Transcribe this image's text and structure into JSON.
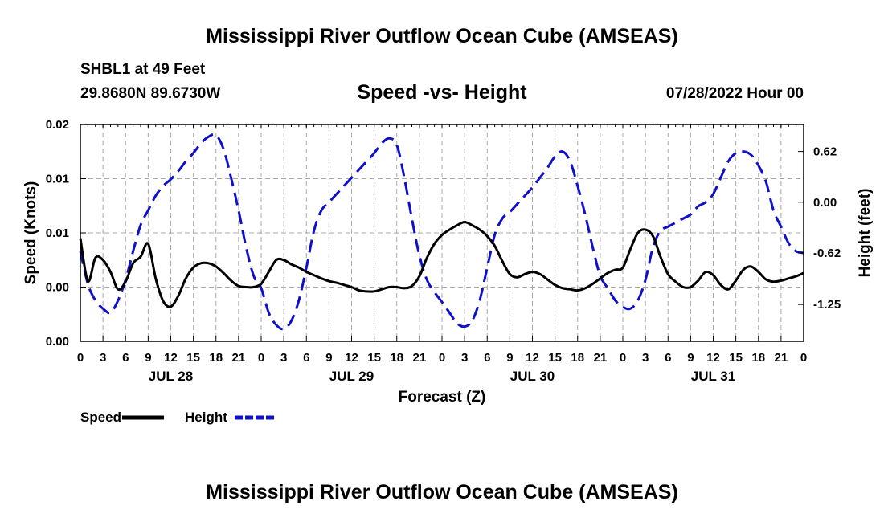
{
  "main_title": "Mississippi River Outflow Ocean Cube (AMSEAS)",
  "footer_title": "Mississippi River Outflow Ocean Cube (AMSEAS)",
  "header": {
    "station": "SHBL1 at 49 Feet",
    "coords": "29.8680N  89.6730W",
    "subtitle": "Speed -vs- Height",
    "datetime": "07/28/2022 Hour 00"
  },
  "chart_data": {
    "type": "line",
    "title": "Speed -vs- Height",
    "xlabel": "Forecast (Z)",
    "ylabel_left": "Speed (Knots)",
    "ylabel_right": "Height (feet)",
    "x_range_hours": [
      0,
      96
    ],
    "x_tick_labels": [
      "0",
      "3",
      "6",
      "9",
      "12",
      "15",
      "18",
      "21",
      "0",
      "3",
      "6",
      "9",
      "12",
      "15",
      "18",
      "21",
      "0",
      "3",
      "6",
      "9",
      "12",
      "15",
      "18",
      "21",
      "0",
      "3",
      "6",
      "9",
      "12",
      "15",
      "18",
      "21",
      "0"
    ],
    "day_labels": [
      {
        "hour": 12,
        "label": "JUL 28"
      },
      {
        "hour": 36,
        "label": "JUL 29"
      },
      {
        "hour": 60,
        "label": "JUL 30"
      },
      {
        "hour": 84,
        "label": "JUL 31"
      }
    ],
    "y_left": {
      "range": [
        0,
        0.02
      ],
      "tick_values": [
        0,
        0.005,
        0.01,
        0.015,
        0.02
      ],
      "tick_labels": [
        "0.00",
        "0.00",
        "0.01",
        "0.01",
        "0.02"
      ]
    },
    "y_right": {
      "range": [
        -1.7,
        0.95
      ],
      "tick_values": [
        -1.25,
        -0.62,
        0.0,
        0.62
      ],
      "tick_labels": [
        "-1.25",
        "-0.62",
        "0.00",
        "0.62"
      ]
    },
    "grid": true,
    "legend": [
      {
        "name": "Speed",
        "color": "#000000",
        "style": "solid"
      },
      {
        "name": "Height",
        "color": "#1010c8",
        "style": "dashed"
      }
    ],
    "series": [
      {
        "name": "Speed",
        "axis": "left",
        "color": "#000000",
        "style": "solid",
        "x": [
          0,
          1,
          2,
          3,
          4,
          5,
          6,
          7,
          8,
          9,
          10,
          11,
          12,
          13,
          14,
          15,
          16,
          17,
          18,
          19,
          20,
          21,
          22,
          23,
          24,
          25,
          26,
          27,
          28,
          29,
          30,
          31,
          32,
          33,
          34,
          35,
          36,
          37,
          38,
          39,
          40,
          41,
          42,
          43,
          44,
          45,
          46,
          47,
          48,
          49,
          50,
          51,
          52,
          53,
          54,
          55,
          56,
          57,
          58,
          59,
          60,
          61,
          62,
          63,
          64,
          65,
          66,
          67,
          68,
          69,
          70,
          71,
          72,
          73,
          74,
          75,
          76,
          77,
          78,
          79,
          80,
          81,
          82,
          83,
          84,
          85,
          86,
          87,
          88,
          89,
          90,
          91,
          92,
          93,
          94,
          95,
          96
        ],
        "values": [
          0.0095,
          0.00555,
          0.0077,
          0.0075,
          0.0064,
          0.0048,
          0.0055,
          0.0072,
          0.0078,
          0.009,
          0.0058,
          0.0037,
          0.0032,
          0.0042,
          0.0058,
          0.0068,
          0.0072,
          0.0072,
          0.0069,
          0.0063,
          0.0056,
          0.0051,
          0.005,
          0.005,
          0.0053,
          0.0064,
          0.0075,
          0.0075,
          0.0071,
          0.0068,
          0.0064,
          0.0061,
          0.0058,
          0.00555,
          0.0054,
          0.0052,
          0.005,
          0.0047,
          0.0046,
          0.0046,
          0.0048,
          0.005,
          0.005,
          0.0049,
          0.0051,
          0.006,
          0.0077,
          0.009,
          0.0098,
          0.0103,
          0.0107,
          0.011,
          0.0107,
          0.0103,
          0.0097,
          0.0088,
          0.0074,
          0.0062,
          0.0059,
          0.0062,
          0.0064,
          0.0062,
          0.0057,
          0.0052,
          0.0049,
          0.0048,
          0.0047,
          0.0049,
          0.0053,
          0.0058,
          0.0063,
          0.0066,
          0.0068,
          0.0085,
          0.01,
          0.0103,
          0.0097,
          0.0078,
          0.0062,
          0.0055,
          0.005,
          0.005,
          0.0056,
          0.0064,
          0.0061,
          0.0052,
          0.0048,
          0.0056,
          0.0066,
          0.0069,
          0.0064,
          0.0057,
          0.0055,
          0.0056,
          0.0058,
          0.006,
          0.0063
        ]
      },
      {
        "name": "Height",
        "axis": "right",
        "color": "#1010c8",
        "style": "dashed",
        "x": [
          0,
          1,
          2,
          3,
          4,
          5,
          6,
          7,
          8,
          9,
          10,
          11,
          12,
          13,
          14,
          15,
          16,
          17,
          18,
          19,
          20,
          21,
          22,
          23,
          24,
          25,
          26,
          27,
          28,
          29,
          30,
          31,
          32,
          33,
          34,
          35,
          36,
          37,
          38,
          39,
          40,
          41,
          42,
          43,
          44,
          45,
          46,
          47,
          48,
          49,
          50,
          51,
          52,
          53,
          54,
          55,
          56,
          57,
          58,
          59,
          60,
          61,
          62,
          63,
          64,
          65,
          66,
          67,
          68,
          69,
          70,
          71,
          72,
          73,
          74,
          75,
          76,
          77,
          78,
          79,
          80,
          81,
          82,
          83,
          84,
          85,
          86,
          87,
          88,
          89,
          90,
          91,
          92,
          93,
          94,
          95,
          96
        ],
        "values": [
          -0.6,
          -1.0,
          -1.2,
          -1.3,
          -1.35,
          -1.2,
          -0.95,
          -0.6,
          -0.28,
          -0.1,
          0.08,
          0.2,
          0.28,
          0.38,
          0.5,
          0.6,
          0.72,
          0.8,
          0.82,
          0.65,
          0.3,
          -0.1,
          -0.55,
          -0.9,
          -1.05,
          -1.35,
          -1.5,
          -1.55,
          -1.45,
          -1.2,
          -0.8,
          -0.35,
          -0.1,
          0.0,
          0.1,
          0.2,
          0.3,
          0.4,
          0.5,
          0.6,
          0.72,
          0.78,
          0.7,
          0.3,
          -0.2,
          -0.65,
          -0.95,
          -1.1,
          -1.22,
          -1.35,
          -1.48,
          -1.52,
          -1.45,
          -1.2,
          -0.8,
          -0.4,
          -0.2,
          -0.12,
          -0.02,
          0.08,
          0.18,
          0.3,
          0.42,
          0.56,
          0.62,
          0.5,
          0.2,
          -0.15,
          -0.55,
          -0.9,
          -1.05,
          -1.2,
          -1.28,
          -1.3,
          -1.2,
          -0.95,
          -0.55,
          -0.35,
          -0.3,
          -0.25,
          -0.2,
          -0.15,
          -0.05,
          0.0,
          0.1,
          0.3,
          0.5,
          0.6,
          0.62,
          0.58,
          0.45,
          0.25,
          -0.1,
          -0.3,
          -0.5,
          -0.6,
          -0.62
        ]
      }
    ]
  }
}
